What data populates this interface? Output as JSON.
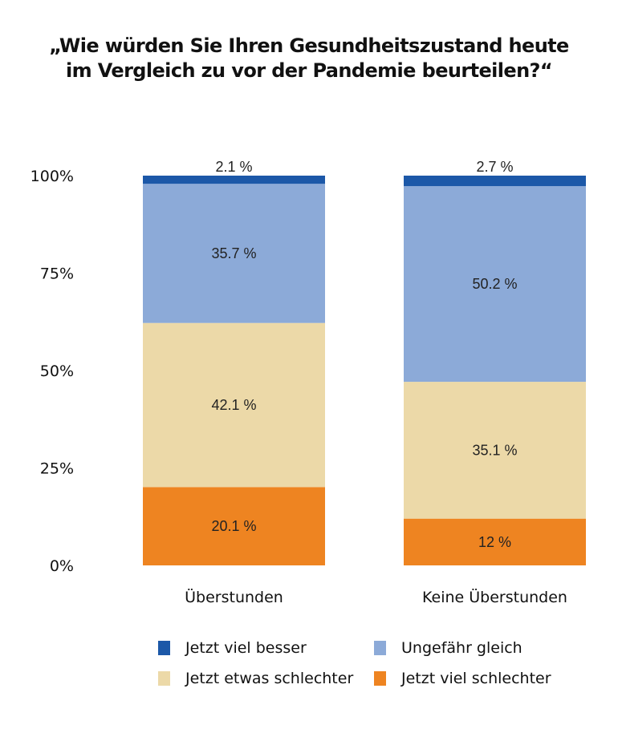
{
  "chart_data": {
    "type": "bar",
    "stacked": true,
    "title": "„Wie würden Sie Ihren Gesundheitszustand heute im Vergleich zu vor der Pandemie beurteilen?“",
    "title_lines": [
      "„Wie würden Sie Ihren Gesundheitszustand heute",
      "im Vergleich zu vor der Pandemie beurteilen?“"
    ],
    "categories": [
      "Überstunden",
      "Keine Überstunden"
    ],
    "xlabel": "",
    "ylabel": "",
    "ylim": [
      0,
      100
    ],
    "yticks": [
      0,
      25,
      50,
      75,
      100
    ],
    "ytick_labels": [
      "0%",
      "25%",
      "50%",
      "75%",
      "100%"
    ],
    "grid": false,
    "legend_position": "bottom",
    "series": [
      {
        "name": "Jetzt viel schlechter",
        "color": "#ee8421",
        "values": [
          20.1,
          12
        ],
        "labels": [
          "20.1 %",
          "12 %"
        ]
      },
      {
        "name": "Jetzt etwas schlechter",
        "color": "#ecd9a8",
        "values": [
          42.1,
          35.1
        ],
        "labels": [
          "42.1 %",
          "35.1 %"
        ]
      },
      {
        "name": "Ungefähr gleich",
        "color": "#8caad8",
        "values": [
          35.7,
          50.2
        ],
        "labels": [
          "35.7 %",
          "50.2 %"
        ]
      },
      {
        "name": "Jetzt viel besser",
        "color": "#1c58a8",
        "values": [
          2.1,
          2.7
        ],
        "labels": [
          "2.1 %",
          "2.7 %"
        ]
      }
    ],
    "legend_order": [
      "Jetzt viel besser",
      "Ungefähr gleich",
      "Jetzt etwas schlechter",
      "Jetzt viel schlechter"
    ]
  }
}
